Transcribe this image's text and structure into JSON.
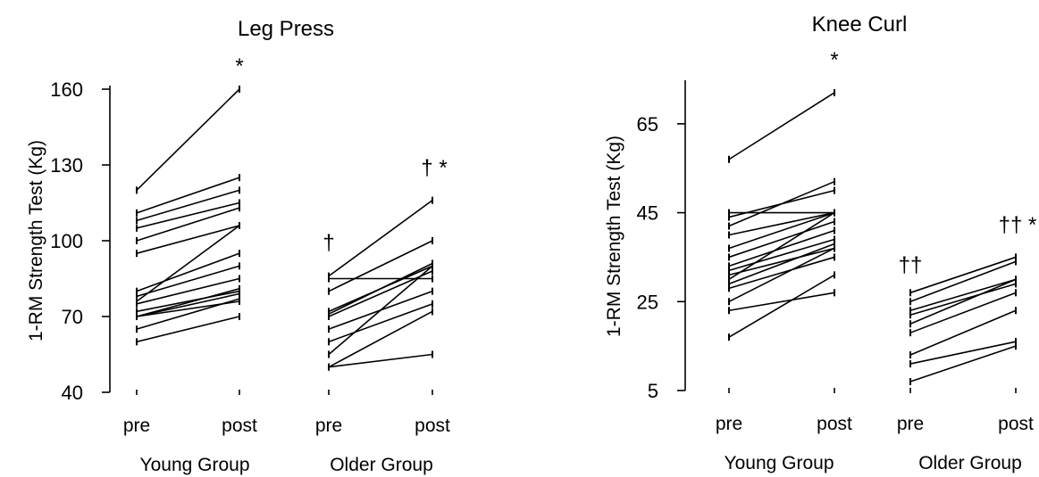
{
  "chart_data": [
    {
      "type": "line",
      "title": "Leg Press",
      "ylabel": "1-RM Strength Test (Kg)",
      "ylim": [
        40,
        160
      ],
      "yticks": [
        40,
        70,
        100,
        130,
        160
      ],
      "groups": [
        {
          "label": "Young Group",
          "x": [
            "pre",
            "post"
          ],
          "pre_marker": "",
          "post_marker": "*",
          "subjects": [
            [
              120,
              160
            ],
            [
              111,
              125
            ],
            [
              108,
              120
            ],
            [
              105,
              115
            ],
            [
              100,
              113
            ],
            [
              95,
              106
            ],
            [
              80,
              95
            ],
            [
              78,
              90
            ],
            [
              76,
              106
            ],
            [
              75,
              85
            ],
            [
              72,
              80
            ],
            [
              70,
              81
            ],
            [
              70,
              79
            ],
            [
              70,
              76
            ],
            [
              65,
              77
            ],
            [
              60,
              70
            ]
          ]
        },
        {
          "label": "Older Group",
          "x": [
            "pre",
            "post"
          ],
          "pre_marker": "†",
          "post_marker": "† *",
          "subjects": [
            [
              86,
              116
            ],
            [
              85,
              85
            ],
            [
              80,
              100
            ],
            [
              72,
              90
            ],
            [
              71,
              91
            ],
            [
              70,
              88
            ],
            [
              65,
              80
            ],
            [
              60,
              75
            ],
            [
              55,
              90
            ],
            [
              50,
              72
            ],
            [
              50,
              55
            ]
          ]
        }
      ]
    },
    {
      "type": "line",
      "title": "Knee Curl",
      "ylabel": "1-RM Strength Test (Kg)",
      "ylim": [
        5,
        74
      ],
      "yticks": [
        5,
        25,
        45,
        65
      ],
      "groups": [
        {
          "label": "Young Group",
          "x": [
            "pre",
            "post"
          ],
          "pre_marker": "",
          "post_marker": "*",
          "subjects": [
            [
              57,
              72
            ],
            [
              45,
              45
            ],
            [
              44,
              50
            ],
            [
              42,
              52
            ],
            [
              40,
              45
            ],
            [
              37,
              45
            ],
            [
              35,
              43
            ],
            [
              33,
              41
            ],
            [
              32,
              39
            ],
            [
              31,
              37
            ],
            [
              30,
              45
            ],
            [
              29,
              38
            ],
            [
              28,
              35
            ],
            [
              25,
              37
            ],
            [
              23,
              27
            ],
            [
              17,
              31
            ]
          ]
        },
        {
          "label": "Older Group",
          "x": [
            "pre",
            "post"
          ],
          "pre_marker": "††",
          "post_marker": "†† *",
          "subjects": [
            [
              27,
              35
            ],
            [
              25,
              34
            ],
            [
              23,
              30
            ],
            [
              22,
              29
            ],
            [
              20,
              30
            ],
            [
              18,
              27
            ],
            [
              13,
              23
            ],
            [
              11,
              16
            ],
            [
              7,
              15
            ]
          ]
        }
      ]
    }
  ]
}
